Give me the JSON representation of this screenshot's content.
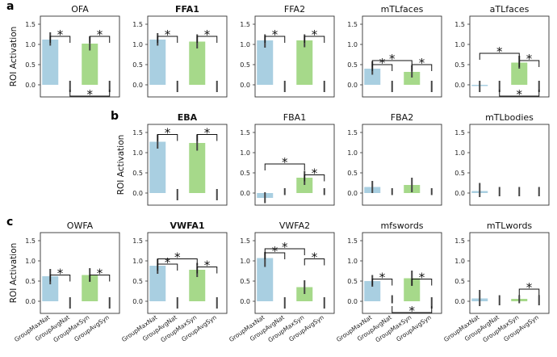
{
  "colors": {
    "blue": "#a9cfe1",
    "green": "#a6d98a",
    "err": "#444444",
    "frame": "#333333"
  },
  "ylabel": "ROI Activation",
  "yticks": [
    "0.0",
    "0.5",
    "1.0",
    "1.5"
  ],
  "categories": [
    "GroupMaxNat",
    "GroupAvgNat",
    "GroupMaxSyn",
    "GroupAvgSyn"
  ],
  "rows": [
    {
      "label": "a",
      "panels": [
        "OFA",
        "FFA1",
        "FFA2",
        "mTLfaces",
        "aTLfaces"
      ]
    },
    {
      "label": "b",
      "panels": [
        "EBA",
        "FBA1",
        "FBA2",
        "mTLbodies"
      ]
    },
    {
      "label": "c",
      "panels": [
        "OWFA",
        "VWFA1",
        "VWFA2",
        "mfswords",
        "mTLwords"
      ]
    }
  ],
  "sig_marker": "*",
  "chart_data": [
    {
      "type": "bar",
      "row": 0,
      "col": 0,
      "title": "OFA",
      "bold": false,
      "ylim": [
        -0.3,
        1.7
      ],
      "values": [
        1.12,
        0,
        1.02,
        0
      ],
      "errors": [
        [
          0.97,
          1.3
        ],
        [
          -0.18,
          0.1
        ],
        [
          0.85,
          1.2
        ],
        [
          -0.18,
          0.1
        ]
      ],
      "sig": [
        {
          "from": 0,
          "to": 1,
          "y": 1.2,
          "up": false
        },
        {
          "from": 2,
          "to": 3,
          "y": 1.2,
          "up": false
        },
        {
          "from": 1,
          "to": 3,
          "y": -0.28,
          "up": true
        }
      ]
    },
    {
      "type": "bar",
      "row": 0,
      "col": 1,
      "title": "FFA1",
      "bold": true,
      "ylim": [
        -0.3,
        1.7
      ],
      "values": [
        1.12,
        0,
        1.07,
        0
      ],
      "errors": [
        [
          0.97,
          1.28
        ],
        [
          -0.18,
          0.1
        ],
        [
          0.9,
          1.25
        ],
        [
          -0.18,
          0.1
        ]
      ],
      "sig": [
        {
          "from": 0,
          "to": 1,
          "y": 1.2,
          "up": false
        },
        {
          "from": 2,
          "to": 3,
          "y": 1.2,
          "up": false
        }
      ]
    },
    {
      "type": "bar",
      "row": 0,
      "col": 2,
      "title": "FFA2",
      "bold": false,
      "ylim": [
        -0.3,
        1.7
      ],
      "values": [
        1.1,
        0,
        1.1,
        0
      ],
      "errors": [
        [
          0.92,
          1.25
        ],
        [
          -0.18,
          0.1
        ],
        [
          0.93,
          1.25
        ],
        [
          -0.18,
          0.1
        ]
      ],
      "sig": [
        {
          "from": 0,
          "to": 1,
          "y": 1.2,
          "up": false
        },
        {
          "from": 2,
          "to": 3,
          "y": 1.2,
          "up": false
        }
      ]
    },
    {
      "type": "bar",
      "row": 0,
      "col": 3,
      "title": "mTLfaces",
      "bold": false,
      "ylim": [
        -0.3,
        1.7
      ],
      "values": [
        0.4,
        0,
        0.32,
        0
      ],
      "errors": [
        [
          0.25,
          0.58
        ],
        [
          -0.18,
          0.1
        ],
        [
          0.18,
          0.48
        ],
        [
          -0.18,
          0.1
        ]
      ],
      "sig": [
        {
          "from": 0,
          "to": 2,
          "y": 0.6,
          "up": false
        },
        {
          "from": 0,
          "to": 1,
          "y": 0.5,
          "up": false
        },
        {
          "from": 2,
          "to": 3,
          "y": 0.5,
          "up": false
        }
      ]
    },
    {
      "type": "bar",
      "row": 0,
      "col": 4,
      "title": "aTLfaces",
      "bold": false,
      "ylim": [
        -0.3,
        1.7
      ],
      "values": [
        -0.02,
        0,
        0.55,
        0
      ],
      "errors": [
        [
          -0.18,
          0.1
        ],
        [
          -0.18,
          0.1
        ],
        [
          0.4,
          0.72
        ],
        [
          -0.18,
          0.1
        ]
      ],
      "sig": [
        {
          "from": 0,
          "to": 2,
          "y": 0.78,
          "up": false
        },
        {
          "from": 2,
          "to": 3,
          "y": 0.6,
          "up": false
        },
        {
          "from": 1,
          "to": 3,
          "y": -0.28,
          "up": true
        }
      ]
    },
    {
      "type": "bar",
      "row": 1,
      "col": 1,
      "title": "EBA",
      "bold": true,
      "ylim": [
        -0.3,
        1.7
      ],
      "values": [
        1.27,
        0,
        1.24,
        0
      ],
      "errors": [
        [
          1.1,
          1.45
        ],
        [
          -0.18,
          0.1
        ],
        [
          1.05,
          1.45
        ],
        [
          -0.18,
          0.1
        ]
      ],
      "sig": [
        {
          "from": 0,
          "to": 1,
          "y": 1.45,
          "up": false
        },
        {
          "from": 2,
          "to": 3,
          "y": 1.45,
          "up": false
        }
      ]
    },
    {
      "type": "bar",
      "row": 1,
      "col": 2,
      "title": "FBA1",
      "bold": false,
      "ylim": [
        -0.3,
        1.7
      ],
      "values": [
        -0.12,
        0,
        0.38,
        0
      ],
      "errors": [
        [
          -0.25,
          0.02
        ],
        [
          -0.05,
          0.12
        ],
        [
          0.2,
          0.55
        ],
        [
          -0.05,
          0.12
        ]
      ],
      "sig": [
        {
          "from": 0,
          "to": 2,
          "y": 0.72,
          "up": false
        },
        {
          "from": 2,
          "to": 3,
          "y": 0.45,
          "up": false
        }
      ]
    },
    {
      "type": "bar",
      "row": 1,
      "col": 3,
      "title": "FBA2",
      "bold": false,
      "ylim": [
        -0.3,
        1.7
      ],
      "values": [
        0.15,
        0,
        0.2,
        0
      ],
      "errors": [
        [
          0.0,
          0.3
        ],
        [
          -0.05,
          0.12
        ],
        [
          0.02,
          0.38
        ],
        [
          -0.05,
          0.12
        ]
      ],
      "sig": []
    },
    {
      "type": "bar",
      "row": 1,
      "col": 4,
      "title": "mTLbodies",
      "bold": false,
      "ylim": [
        -0.3,
        1.7
      ],
      "values": [
        0.05,
        0,
        0,
        0
      ],
      "errors": [
        [
          -0.1,
          0.25
        ],
        [
          -0.08,
          0.15
        ],
        [
          -0.08,
          0.15
        ],
        [
          -0.08,
          0.15
        ]
      ],
      "sig": []
    },
    {
      "type": "bar",
      "row": 2,
      "col": 0,
      "title": "OWFA",
      "bold": false,
      "ylim": [
        -0.3,
        1.7
      ],
      "values": [
        0.62,
        0,
        0.65,
        0
      ],
      "errors": [
        [
          0.42,
          0.8
        ],
        [
          -0.18,
          0.1
        ],
        [
          0.48,
          0.82
        ],
        [
          -0.18,
          0.1
        ]
      ],
      "sig": [
        {
          "from": 0,
          "to": 1,
          "y": 0.65,
          "up": false
        },
        {
          "from": 2,
          "to": 3,
          "y": 0.65,
          "up": false
        }
      ]
    },
    {
      "type": "bar",
      "row": 2,
      "col": 1,
      "title": "VWFA1",
      "bold": true,
      "ylim": [
        -0.3,
        1.7
      ],
      "values": [
        0.88,
        0,
        0.78,
        0
      ],
      "errors": [
        [
          0.68,
          1.05
        ],
        [
          -0.18,
          0.1
        ],
        [
          0.6,
          0.95
        ],
        [
          -0.18,
          0.1
        ]
      ],
      "sig": [
        {
          "from": 0,
          "to": 2,
          "y": 1.05,
          "up": false
        },
        {
          "from": 0,
          "to": 1,
          "y": 0.92,
          "up": false
        },
        {
          "from": 2,
          "to": 3,
          "y": 0.85,
          "up": false
        }
      ]
    },
    {
      "type": "bar",
      "row": 2,
      "col": 2,
      "title": "VWFA2",
      "bold": false,
      "ylim": [
        -0.3,
        1.7
      ],
      "values": [
        1.07,
        0,
        0.35,
        0
      ],
      "errors": [
        [
          0.85,
          1.22
        ],
        [
          -0.18,
          0.1
        ],
        [
          0.18,
          0.52
        ],
        [
          -0.18,
          0.1
        ]
      ],
      "sig": [
        {
          "from": 0,
          "to": 2,
          "y": 1.3,
          "up": false
        },
        {
          "from": 0,
          "to": 1,
          "y": 1.2,
          "up": false
        },
        {
          "from": 2,
          "to": 3,
          "y": 1.05,
          "up": false
        }
      ]
    },
    {
      "type": "bar",
      "row": 2,
      "col": 3,
      "title": "mfswords",
      "bold": false,
      "ylim": [
        -0.3,
        1.7
      ],
      "values": [
        0.5,
        0,
        0.57,
        0
      ],
      "errors": [
        [
          0.36,
          0.65
        ],
        [
          -0.05,
          0.15
        ],
        [
          0.38,
          0.76
        ],
        [
          -0.18,
          0.1
        ]
      ],
      "sig": [
        {
          "from": 0,
          "to": 1,
          "y": 0.55,
          "up": false
        },
        {
          "from": 2,
          "to": 3,
          "y": 0.55,
          "up": false
        },
        {
          "from": 1,
          "to": 3,
          "y": -0.28,
          "up": true
        }
      ]
    },
    {
      "type": "bar",
      "row": 2,
      "col": 4,
      "title": "mTLwords",
      "bold": false,
      "ylim": [
        -0.3,
        1.7
      ],
      "values": [
        0.07,
        0,
        0.06,
        0
      ],
      "errors": [
        [
          -0.12,
          0.28
        ],
        [
          -0.1,
          0.15
        ],
        [
          -0.05,
          0.15
        ],
        [
          -0.1,
          0.15
        ]
      ],
      "sig": [
        {
          "from": 2,
          "to": 3,
          "y": 0.3,
          "up": false
        }
      ]
    }
  ]
}
